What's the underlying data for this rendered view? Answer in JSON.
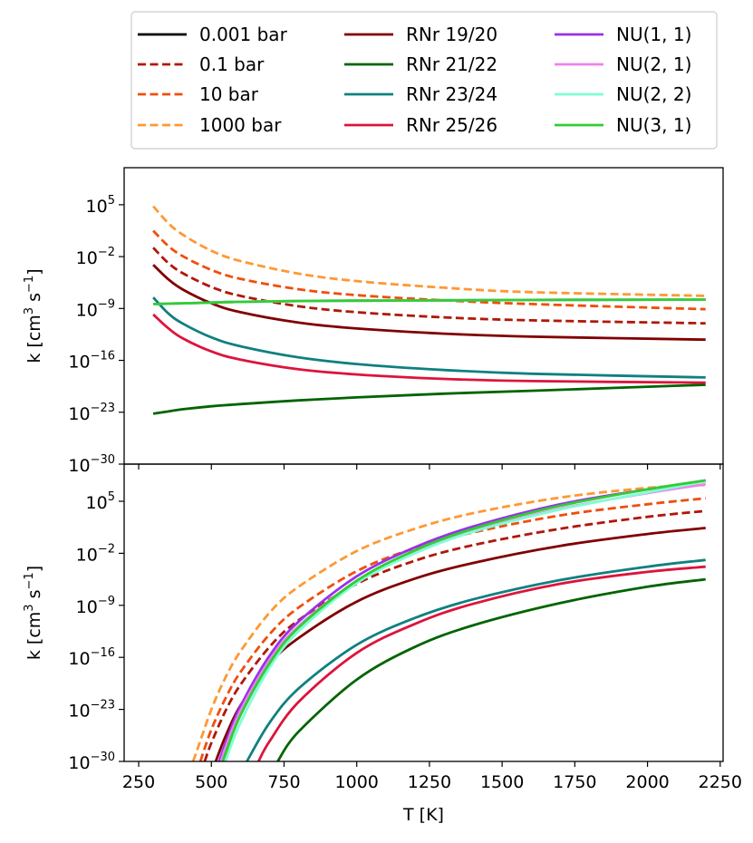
{
  "chart_data": [
    {
      "panel": "top",
      "type": "line",
      "xlabel": "",
      "ylabel": "k [cm³ s⁻¹]",
      "ylabel_parts": {
        "base": "k [cm",
        "sup1": "3",
        "mid": " s",
        "sup2": "−1",
        "end": "]"
      },
      "xlim": [
        200,
        2260
      ],
      "ylim": [
        -30,
        10
      ],
      "yticks": [
        -30,
        -23,
        -16,
        -9,
        -2,
        5
      ],
      "xticks": [
        250,
        500,
        750,
        1000,
        1250,
        1500,
        1750,
        2000,
        2250
      ],
      "x": [
        300,
        350,
        400,
        500,
        600,
        800,
        1000,
        1300,
        1600,
        2200
      ],
      "series": [
        {
          "name": "RNr 19/20 (0.001 bar)",
          "color": "#800000",
          "style": "solid",
          "log10_values": [
            -3.1,
            -5.0,
            -6.4,
            -8.3,
            -9.5,
            -10.9,
            -11.7,
            -12.4,
            -12.8,
            -13.2
          ]
        },
        {
          "name": "RNr 19/20 (0.1 bar)",
          "color": "#b0170a",
          "style": "dashed",
          "log10_values": [
            -0.8,
            -2.8,
            -4.2,
            -6.1,
            -7.3,
            -8.7,
            -9.5,
            -10.2,
            -10.6,
            -11.0
          ]
        },
        {
          "name": "RNr 19/20 (10 bar)",
          "color": "#f04e0c",
          "style": "dashed",
          "log10_values": [
            1.5,
            -0.5,
            -1.9,
            -3.8,
            -5.0,
            -6.4,
            -7.2,
            -7.9,
            -8.4,
            -9.1
          ]
        },
        {
          "name": "RNr 19/20 (1000 bar)",
          "color": "#ff9833",
          "style": "dashed",
          "log10_values": [
            4.8,
            2.6,
            1.0,
            -1.2,
            -2.6,
            -4.3,
            -5.3,
            -6.2,
            -6.8,
            -7.3
          ]
        },
        {
          "name": "RNr 21/22",
          "color": "#006400",
          "style": "solid",
          "log10_values": [
            -23.2,
            -22.9,
            -22.6,
            -22.2,
            -21.9,
            -21.4,
            -21.0,
            -20.5,
            -20.1,
            -19.3
          ]
        },
        {
          "name": "RNr 23/24",
          "color": "#108080",
          "style": "solid",
          "log10_values": [
            -7.5,
            -9.6,
            -11.0,
            -12.9,
            -14.1,
            -15.6,
            -16.5,
            -17.3,
            -17.8,
            -18.3
          ]
        },
        {
          "name": "RNr 25/26",
          "color": "#dc143c",
          "style": "solid",
          "log10_values": [
            -9.8,
            -11.6,
            -13.0,
            -14.8,
            -15.9,
            -17.2,
            -17.9,
            -18.5,
            -18.8,
            -19.0
          ]
        },
        {
          "name": "NU(1, 1)",
          "color": "#9b30e8",
          "style": "solid",
          "log10_values": [
            -8.4,
            -8.35,
            -8.3,
            -8.2,
            -8.1,
            -8.0,
            -7.95,
            -7.9,
            -7.85,
            -7.8
          ]
        },
        {
          "name": "NU(2, 1)",
          "color": "#ee82ee",
          "style": "solid",
          "log10_values": [
            -8.4,
            -8.35,
            -8.3,
            -8.2,
            -8.1,
            -8.0,
            -7.95,
            -7.9,
            -7.85,
            -7.8
          ]
        },
        {
          "name": "NU(2, 2)",
          "color": "#7fffd4",
          "style": "solid",
          "log10_values": [
            -8.4,
            -8.35,
            -8.3,
            -8.2,
            -8.1,
            -8.0,
            -7.95,
            -7.9,
            -7.85,
            -7.8
          ]
        },
        {
          "name": "NU(3, 1)",
          "color": "#32cd32",
          "style": "solid",
          "log10_values": [
            -8.4,
            -8.35,
            -8.3,
            -8.2,
            -8.1,
            -8.0,
            -7.95,
            -7.9,
            -7.85,
            -7.8
          ]
        }
      ]
    },
    {
      "panel": "bottom",
      "type": "line",
      "xlabel": "T [K]",
      "ylabel": "k [cm³ s⁻¹]",
      "ylabel_parts": {
        "base": "k [cm",
        "sup1": "3",
        "mid": " s",
        "sup2": "−1",
        "end": "]"
      },
      "xlim": [
        200,
        2260
      ],
      "ylim": [
        -30,
        10
      ],
      "yticks": [
        -30,
        -23,
        -16,
        -9,
        -2,
        5
      ],
      "xticks": [
        250,
        500,
        750,
        1000,
        1250,
        1500,
        1750,
        2000,
        2250
      ],
      "series": [
        {
          "name": "RNr 19/20 (0.001 bar)",
          "color": "#800000",
          "style": "solid",
          "x": [
            515,
            550,
            600,
            700,
            800,
            1000,
            1200,
            1400,
            1700,
            2000,
            2200
          ],
          "log10_values": [
            -30,
            -26.5,
            -22.5,
            -16.9,
            -13.4,
            -8.5,
            -5.4,
            -3.3,
            -1.0,
            0.6,
            1.4
          ]
        },
        {
          "name": "RNr 19/20 (0.1 bar)",
          "color": "#b0170a",
          "style": "dashed",
          "x": [
            477,
            500,
            550,
            600,
            700,
            800,
            1000,
            1200,
            1400,
            1700,
            2000,
            2200
          ],
          "log10_values": [
            -30,
            -27.5,
            -23.1,
            -19.7,
            -14.6,
            -11.0,
            -6.1,
            -3.0,
            -0.9,
            1.3,
            2.9,
            3.7
          ]
        },
        {
          "name": "RNr 19/20 (10 bar)",
          "color": "#f04e0c",
          "style": "dashed",
          "x": [
            462,
            500,
            550,
            600,
            700,
            800,
            1000,
            1200,
            1400,
            1700,
            2000,
            2200
          ],
          "log10_values": [
            -30,
            -25.7,
            -21.4,
            -18.0,
            -12.9,
            -9.3,
            -4.4,
            -1.3,
            0.8,
            3.1,
            4.6,
            5.4
          ]
        },
        {
          "name": "RNr 19/20 (1000 bar)",
          "color": "#ff9833",
          "style": "dashed",
          "x": [
            437,
            450,
            500,
            550,
            600,
            700,
            800,
            1000,
            1200,
            1400,
            1700,
            2000,
            2200
          ],
          "log10_values": [
            -30,
            -28.6,
            -23.0,
            -18.6,
            -15.2,
            -10.0,
            -6.5,
            -1.7,
            1.3,
            3.4,
            5.5,
            6.8,
            7.2
          ]
        },
        {
          "name": "RNr 21/22",
          "color": "#006400",
          "style": "solid",
          "x": [
            728,
            800,
            1000,
            1200,
            1400,
            1700,
            2000,
            2200
          ],
          "log10_values": [
            -30,
            -26.0,
            -19.0,
            -14.6,
            -11.7,
            -8.7,
            -6.5,
            -5.5
          ]
        },
        {
          "name": "RNr 23/24",
          "color": "#108080",
          "style": "solid",
          "x": [
            622,
            700,
            800,
            1000,
            1200,
            1400,
            1700,
            2000,
            2200
          ],
          "log10_values": [
            -30,
            -24.8,
            -20.2,
            -14.3,
            -10.7,
            -8.2,
            -5.6,
            -3.8,
            -2.9
          ]
        },
        {
          "name": "RNr 25/26",
          "color": "#dc143c",
          "style": "solid",
          "x": [
            662,
            700,
            800,
            1000,
            1200,
            1400,
            1700,
            2000,
            2200
          ],
          "log10_values": [
            -30,
            -27.3,
            -22.0,
            -15.4,
            -11.5,
            -8.8,
            -6.1,
            -4.5,
            -3.8
          ]
        },
        {
          "name": "NU(1, 1)",
          "color": "#9b30e8",
          "style": "solid",
          "x": [
            527,
            550,
            600,
            700,
            800,
            1000,
            1200,
            1400,
            1700,
            2000,
            2200
          ],
          "log10_values": [
            -30,
            -27.4,
            -22.6,
            -15.8,
            -11.2,
            -5.1,
            -1.2,
            1.6,
            4.6,
            6.6,
            7.8
          ]
        },
        {
          "name": "NU(2, 1)",
          "color": "#ee82ee",
          "style": "solid",
          "x": [
            533,
            550,
            600,
            700,
            800,
            1000,
            1200,
            1400,
            1700,
            2000,
            2200
          ],
          "log10_values": [
            -30,
            -28.0,
            -23.2,
            -16.4,
            -11.8,
            -5.7,
            -1.8,
            1.0,
            4.0,
            6.1,
            7.3
          ]
        },
        {
          "name": "NU(2, 2)",
          "color": "#7fffd4",
          "style": "solid",
          "x": [
            548,
            600,
            700,
            800,
            1000,
            1200,
            1400,
            1700,
            2000,
            2200
          ],
          "log10_values": [
            -30,
            -24.8,
            -17.4,
            -12.5,
            -6.0,
            -2.0,
            0.9,
            3.9,
            6.2,
            7.7
          ]
        },
        {
          "name": "NU(3, 1)",
          "color": "#32cd32",
          "style": "solid",
          "x": [
            540,
            550,
            600,
            700,
            800,
            1000,
            1200,
            1400,
            1700,
            2000,
            2200
          ],
          "log10_values": [
            -30,
            -28.8,
            -23.8,
            -16.8,
            -12.0,
            -5.7,
            -1.6,
            1.3,
            4.4,
            6.6,
            7.8
          ]
        }
      ]
    }
  ],
  "legend": {
    "placement": "above the plots",
    "columns": [
      [
        {
          "label": "0.001 bar",
          "color": "#000000",
          "style": "solid"
        },
        {
          "label": "0.1 bar",
          "color": "#b0170a",
          "style": "dashed"
        },
        {
          "label": "10 bar",
          "color": "#f04e0c",
          "style": "dashed"
        },
        {
          "label": "1000 bar",
          "color": "#ff9833",
          "style": "dashed"
        }
      ],
      [
        {
          "label": "RNr 19/20",
          "color": "#800000",
          "style": "solid"
        },
        {
          "label": "RNr 21/22",
          "color": "#006400",
          "style": "solid"
        },
        {
          "label": "RNr 23/24",
          "color": "#108080",
          "style": "solid"
        },
        {
          "label": "RNr 25/26",
          "color": "#dc143c",
          "style": "solid"
        }
      ],
      [
        {
          "label": "NU(1, 1)",
          "color": "#9b30e8",
          "style": "solid"
        },
        {
          "label": "NU(2, 1)",
          "color": "#ee82ee",
          "style": "solid"
        },
        {
          "label": "NU(2, 2)",
          "color": "#7fffd4",
          "style": "solid"
        },
        {
          "label": "NU(3, 1)",
          "color": "#32cd32",
          "style": "solid"
        }
      ]
    ]
  }
}
